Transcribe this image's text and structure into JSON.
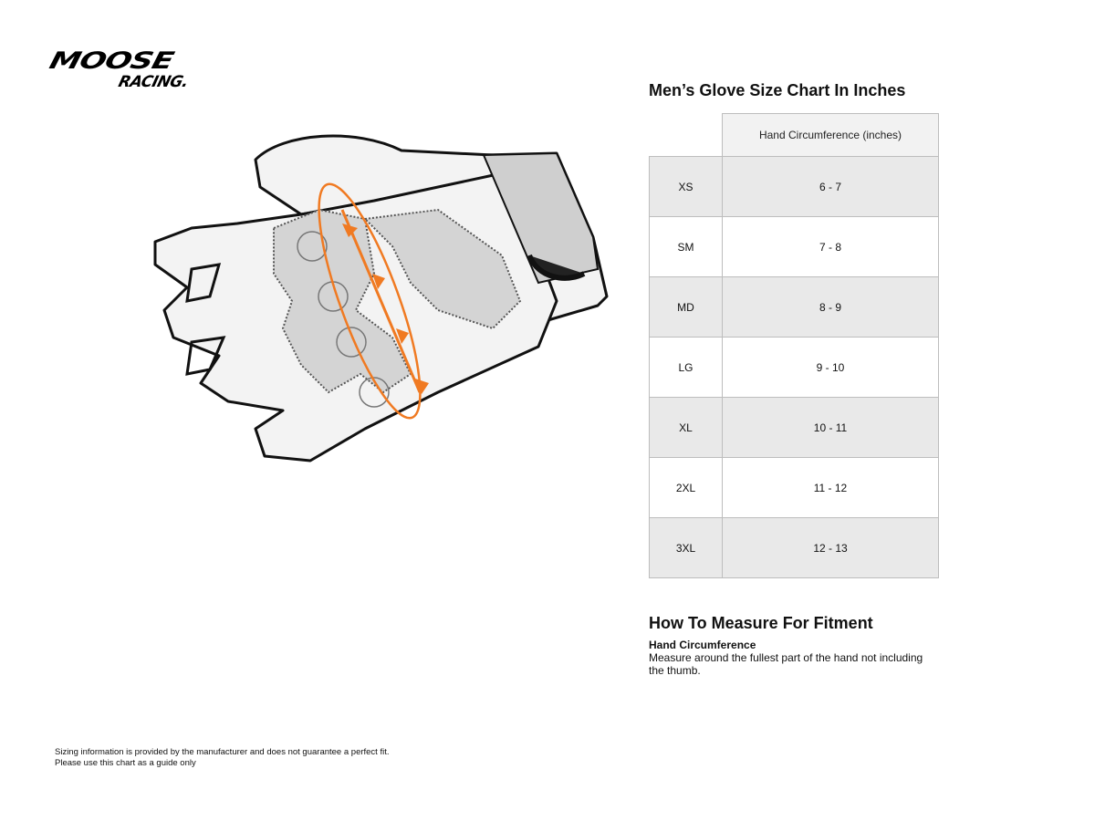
{
  "logo": {
    "line1": "MOOSE",
    "line2": "RACING."
  },
  "chart": {
    "title": "Men’s Glove Size Chart In Inches",
    "column_header": "Hand Circumference (inches)",
    "rows": [
      {
        "size": "XS",
        "value": "6 - 7"
      },
      {
        "size": "SM",
        "value": "7 - 8"
      },
      {
        "size": "MD",
        "value": "8 - 9"
      },
      {
        "size": "LG",
        "value": "9 - 10"
      },
      {
        "size": "XL",
        "value": "10 - 11"
      },
      {
        "size": "2XL",
        "value": "11 - 12"
      },
      {
        "size": "3XL",
        "value": "12 - 13"
      }
    ]
  },
  "measure": {
    "title": "How To Measure For Fitment",
    "subtitle": "Hand Circumference",
    "text": "Measure around the fullest part of the hand not including the thumb."
  },
  "disclaimer": {
    "line1": "Sizing information is provided by the manufacturer and does not guarantee a perfect fit.",
    "line2": "Please use this chart as a guide only"
  },
  "colors": {
    "accent": "#f07a22",
    "row_shade": "#e9e9e9",
    "header_shade": "#f2f2f2"
  }
}
